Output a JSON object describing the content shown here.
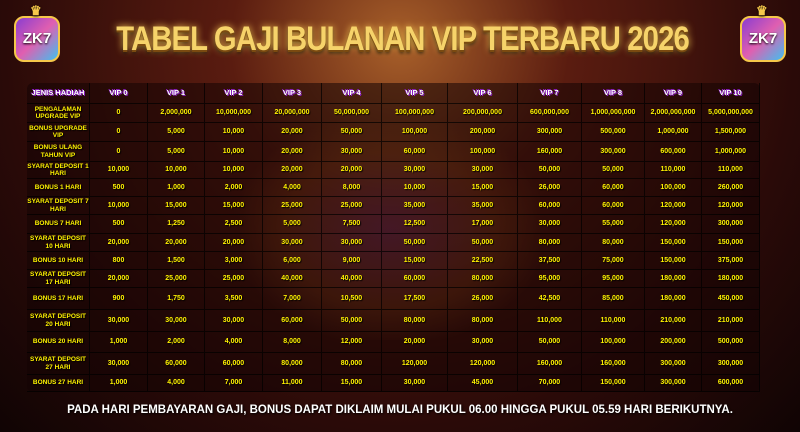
{
  "header": {
    "title": "TABEL GAJI BULANAN VIP TERBARU 2026",
    "logo_text": "ZK7"
  },
  "table": {
    "columns": [
      "JENIS HADIAH",
      "VIP 0",
      "VIP 1",
      "VIP 2",
      "VIP 3",
      "VIP 4",
      "VIP 5",
      "VIP 6",
      "VIP 7",
      "VIP 8",
      "VIP 9",
      "VIP 10"
    ],
    "rows": [
      [
        "PENGALAMAN UPGRADE VIP",
        "0",
        "2,000,000",
        "10,000,000",
        "20,000,000",
        "50,000,000",
        "100,000,000",
        "200,000,000",
        "600,000,000",
        "1,000,000,000",
        "2,000,000,000",
        "5,000,000,000"
      ],
      [
        "BONUS UPGRADE VIP",
        "0",
        "5,000",
        "10,000",
        "20,000",
        "50,000",
        "100,000",
        "200,000",
        "300,000",
        "500,000",
        "1,000,000",
        "1,500,000"
      ],
      [
        "BONUS ULANG TAHUN VIP",
        "0",
        "5,000",
        "10,000",
        "20,000",
        "30,000",
        "60,000",
        "100,000",
        "160,000",
        "300,000",
        "600,000",
        "1,000,000"
      ],
      [
        "SYARAT DEPOSIT 1 HARI",
        "10,000",
        "10,000",
        "10,000",
        "20,000",
        "20,000",
        "30,000",
        "30,000",
        "50,000",
        "50,000",
        "110,000",
        "110,000"
      ],
      [
        "BONUS 1 HARI",
        "500",
        "1,000",
        "2,000",
        "4,000",
        "8,000",
        "10,000",
        "15,000",
        "26,000",
        "60,000",
        "100,000",
        "260,000"
      ],
      [
        "SYARAT DEPOSIT 7 HARI",
        "10,000",
        "15,000",
        "15,000",
        "25,000",
        "25,000",
        "35,000",
        "35,000",
        "60,000",
        "60,000",
        "120,000",
        "120,000"
      ],
      [
        "BONUS 7 HARI",
        "500",
        "1,250",
        "2,500",
        "5,000",
        "7,500",
        "12,500",
        "17,000",
        "30,000",
        "55,000",
        "120,000",
        "300,000"
      ],
      [
        "SYARAT DEPOSIT 10 HARI",
        "20,000",
        "20,000",
        "20,000",
        "30,000",
        "30,000",
        "50,000",
        "50,000",
        "80,000",
        "80,000",
        "150,000",
        "150,000"
      ],
      [
        "BONUS 10 HARI",
        "800",
        "1,500",
        "3,000",
        "6,000",
        "9,000",
        "15,000",
        "22,500",
        "37,500",
        "75,000",
        "150,000",
        "375,000"
      ],
      [
        "SYARAT DEPOSIT 17 HARI",
        "20,000",
        "25,000",
        "25,000",
        "40,000",
        "40,000",
        "60,000",
        "80,000",
        "95,000",
        "95,000",
        "180,000",
        "180,000"
      ],
      [
        "BONUS 17 HARI",
        "900",
        "1,750",
        "3,500",
        "7,000",
        "10,500",
        "17,500",
        "26,000",
        "42,500",
        "85,000",
        "180,000",
        "450,000"
      ],
      [
        "SYARAT DEPOSIT 20 HARI",
        "30,000",
        "30,000",
        "30,000",
        "60,000",
        "50,000",
        "80,000",
        "80,000",
        "110,000",
        "110,000",
        "210,000",
        "210,000"
      ],
      [
        "BONUS 20 HARI",
        "1,000",
        "2,000",
        "4,000",
        "8,000",
        "12,000",
        "20,000",
        "30,000",
        "50,000",
        "100,000",
        "200,000",
        "500,000"
      ],
      [
        "SYARAT DEPOSIT 27 HARI",
        "30,000",
        "60,000",
        "60,000",
        "80,000",
        "80,000",
        "120,000",
        "120,000",
        "160,000",
        "160,000",
        "300,000",
        "300,000"
      ],
      [
        "BONUS 27 HARI",
        "1,000",
        "4,000",
        "7,000",
        "11,000",
        "15,000",
        "30,000",
        "45,000",
        "70,000",
        "150,000",
        "300,000",
        "600,000"
      ]
    ]
  },
  "footer": {
    "note": "PADA HARI PEMBAYARAN GAJI, BONUS DAPAT DIKLAIM MULAI PUKUL 06.00 HINGGA PUKUL 05.59 HARI BERIKUTNYA."
  }
}
